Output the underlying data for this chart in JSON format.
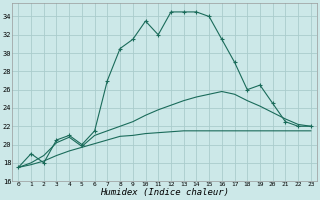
{
  "xlabel": "Humidex (Indice chaleur)",
  "bg_color": "#cce8e8",
  "grid_color": "#aacccc",
  "line_color": "#1a6b5a",
  "x_values": [
    0,
    1,
    2,
    3,
    4,
    5,
    6,
    7,
    8,
    9,
    10,
    11,
    12,
    13,
    14,
    15,
    16,
    17,
    18,
    19,
    20,
    21,
    22,
    23
  ],
  "series1": [
    17.5,
    19.0,
    18.0,
    20.5,
    21.0,
    20.0,
    21.5,
    27.0,
    30.5,
    31.5,
    33.5,
    32.0,
    34.5,
    34.5,
    34.5,
    34.0,
    31.5,
    29.0,
    26.0,
    26.5,
    24.5,
    22.5,
    22.0,
    22.0
  ],
  "series2": [
    17.5,
    18.0,
    18.8,
    20.2,
    20.8,
    19.8,
    21.0,
    21.5,
    22.0,
    22.5,
    23.2,
    23.8,
    24.3,
    24.8,
    25.2,
    25.5,
    25.8,
    25.5,
    24.8,
    24.2,
    23.5,
    22.8,
    22.2,
    22.0
  ],
  "series3": [
    17.5,
    17.8,
    18.2,
    18.8,
    19.3,
    19.7,
    20.1,
    20.5,
    20.9,
    21.0,
    21.2,
    21.3,
    21.4,
    21.5,
    21.5,
    21.5,
    21.5,
    21.5,
    21.5,
    21.5,
    21.5,
    21.5,
    21.5,
    21.5
  ],
  "ylim": [
    16,
    35
  ],
  "yticks": [
    16,
    18,
    20,
    22,
    24,
    26,
    28,
    30,
    32,
    34
  ],
  "xlim_min": -0.5,
  "xlim_max": 23.5
}
